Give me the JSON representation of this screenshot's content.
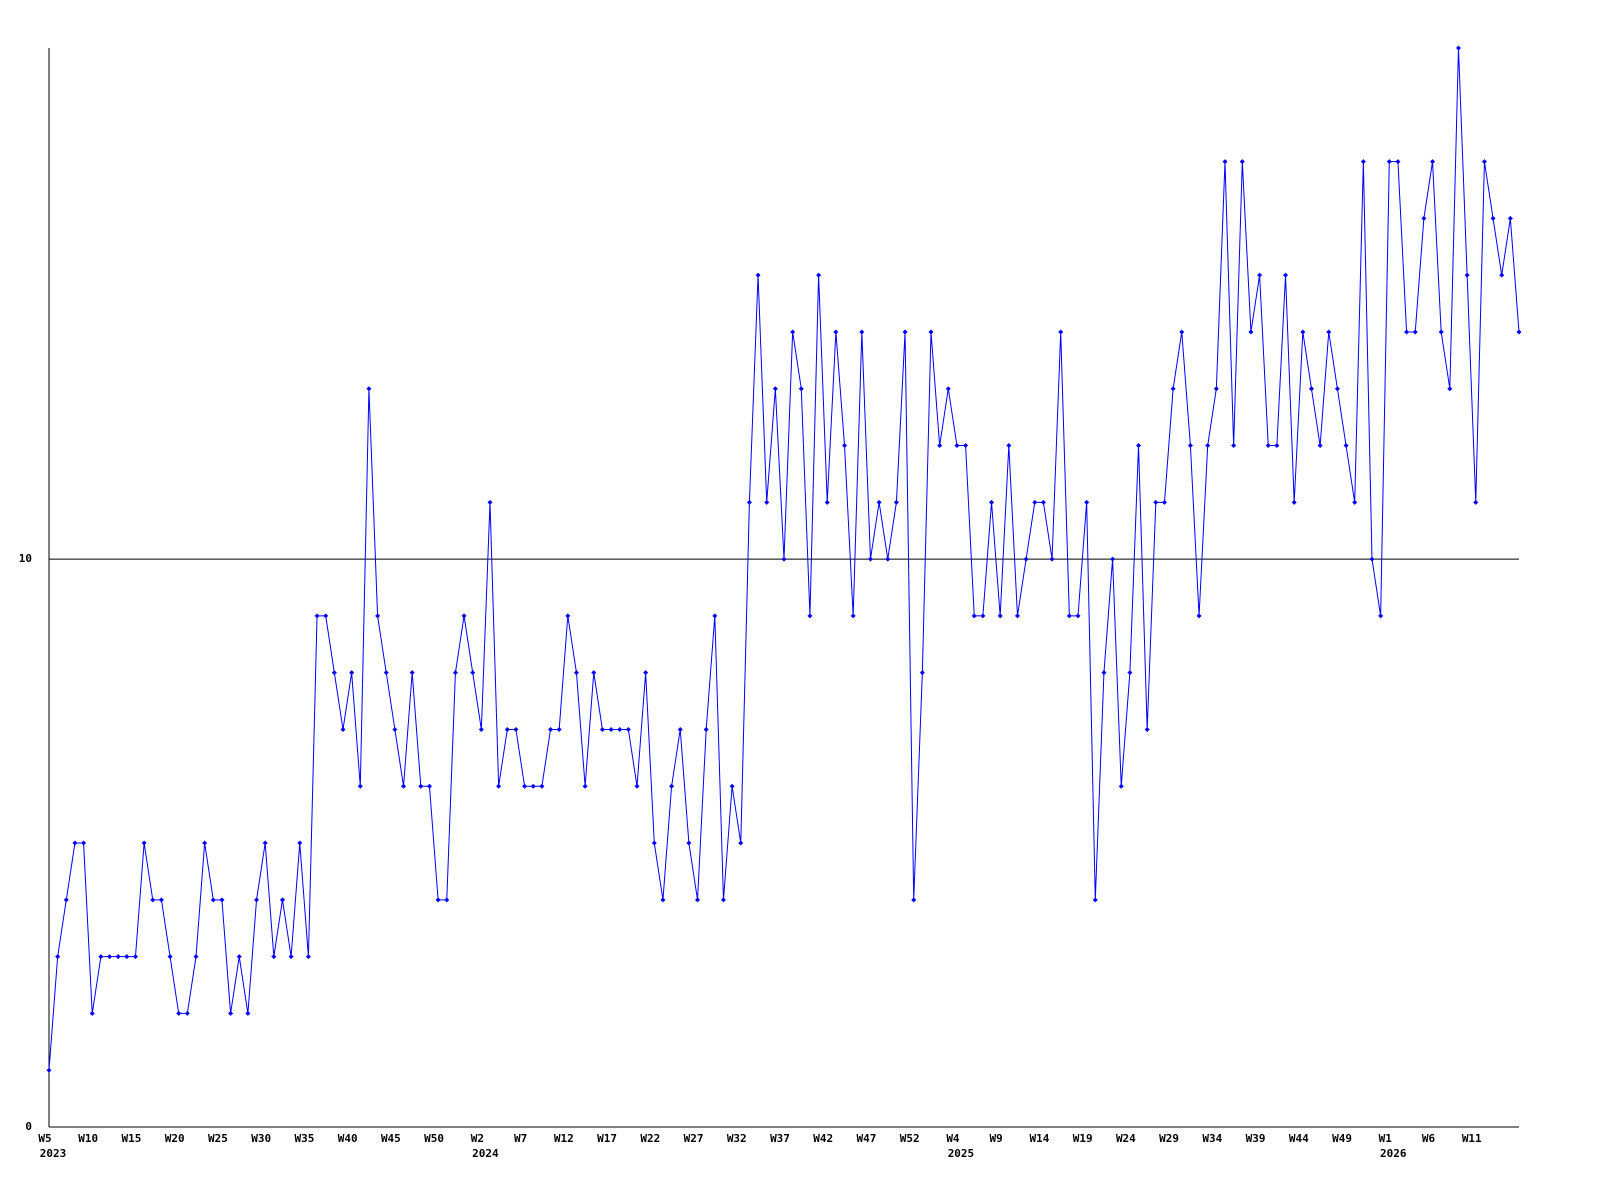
{
  "chart_data": {
    "type": "line",
    "series": [
      {
        "color": "#0000ff",
        "values": [
          1,
          3,
          4,
          5,
          5,
          2,
          3,
          3,
          3,
          3,
          3,
          5,
          4,
          4,
          3,
          2,
          2,
          3,
          5,
          4,
          4,
          2,
          3,
          2,
          4,
          5,
          3,
          4,
          3,
          5,
          3,
          9,
          9,
          8,
          7,
          8,
          6,
          13,
          9,
          8,
          7,
          6,
          8,
          6,
          6,
          4,
          4,
          8,
          9,
          8,
          7,
          11,
          6,
          7,
          7,
          6,
          6,
          6,
          7,
          7,
          9,
          8,
          6,
          8,
          7,
          7,
          7,
          7,
          6,
          8,
          5,
          4,
          6,
          7,
          5,
          4,
          7,
          9,
          4,
          6,
          5,
          11,
          15,
          11,
          13,
          10,
          14,
          13,
          9,
          15,
          11,
          14,
          12,
          9,
          14,
          10,
          11,
          10,
          11,
          14,
          4,
          8,
          14,
          12,
          13,
          12,
          12,
          9,
          9,
          11,
          9,
          12,
          9,
          10,
          11,
          11,
          10,
          14,
          9,
          9,
          11,
          4,
          8,
          10,
          6,
          8,
          12,
          7,
          11,
          11,
          13,
          14,
          12,
          9,
          12,
          13,
          17,
          12,
          17,
          14,
          15,
          12,
          12,
          15,
          11,
          14,
          13,
          12,
          14,
          13,
          12,
          11,
          17,
          10,
          9,
          17,
          17,
          14,
          14,
          16,
          17,
          14,
          13,
          19,
          15,
          11,
          17,
          16,
          15,
          16,
          14
        ]
      }
    ],
    "ylim": [
      0,
      19
    ],
    "yticks": [
      0,
      10
    ],
    "xticks": [
      {
        "value": 0,
        "label": "W5"
      },
      {
        "value": 5,
        "label": "W10"
      },
      {
        "value": 10,
        "label": "W15"
      },
      {
        "value": 15,
        "label": "W20"
      },
      {
        "value": 20,
        "label": "W25"
      },
      {
        "value": 25,
        "label": "W30"
      },
      {
        "value": 30,
        "label": "W35"
      },
      {
        "value": 35,
        "label": "W40"
      },
      {
        "value": 40,
        "label": "W45"
      },
      {
        "value": 45,
        "label": "W50"
      },
      {
        "value": 50,
        "label": "W2"
      },
      {
        "value": 55,
        "label": "W7"
      },
      {
        "value": 60,
        "label": "W12"
      },
      {
        "value": 65,
        "label": "W17"
      },
      {
        "value": 70,
        "label": "W22"
      },
      {
        "value": 75,
        "label": "W27"
      },
      {
        "value": 80,
        "label": "W32"
      },
      {
        "value": 85,
        "label": "W37"
      },
      {
        "value": 90,
        "label": "W42"
      },
      {
        "value": 95,
        "label": "W47"
      },
      {
        "value": 100,
        "label": "W52"
      },
      {
        "value": 105,
        "label": "W4"
      },
      {
        "value": 110,
        "label": "W9"
      },
      {
        "value": 115,
        "label": "W14"
      },
      {
        "value": 120,
        "label": "W19"
      },
      {
        "value": 125,
        "label": "W24"
      },
      {
        "value": 130,
        "label": "W29"
      },
      {
        "value": 135,
        "label": "W34"
      },
      {
        "value": 140,
        "label": "W39"
      },
      {
        "value": 145,
        "label": "W44"
      },
      {
        "value": 150,
        "label": "W49"
      },
      {
        "value": 155,
        "label": "W1"
      },
      {
        "value": 160,
        "label": "W6"
      },
      {
        "value": 165,
        "label": "W11"
      }
    ],
    "year_labels": [
      {
        "value": 0,
        "label": "2023"
      },
      {
        "value": 50,
        "label": "2024"
      },
      {
        "value": 105,
        "label": "2025"
      },
      {
        "value": 155,
        "label": "2026"
      }
    ]
  }
}
